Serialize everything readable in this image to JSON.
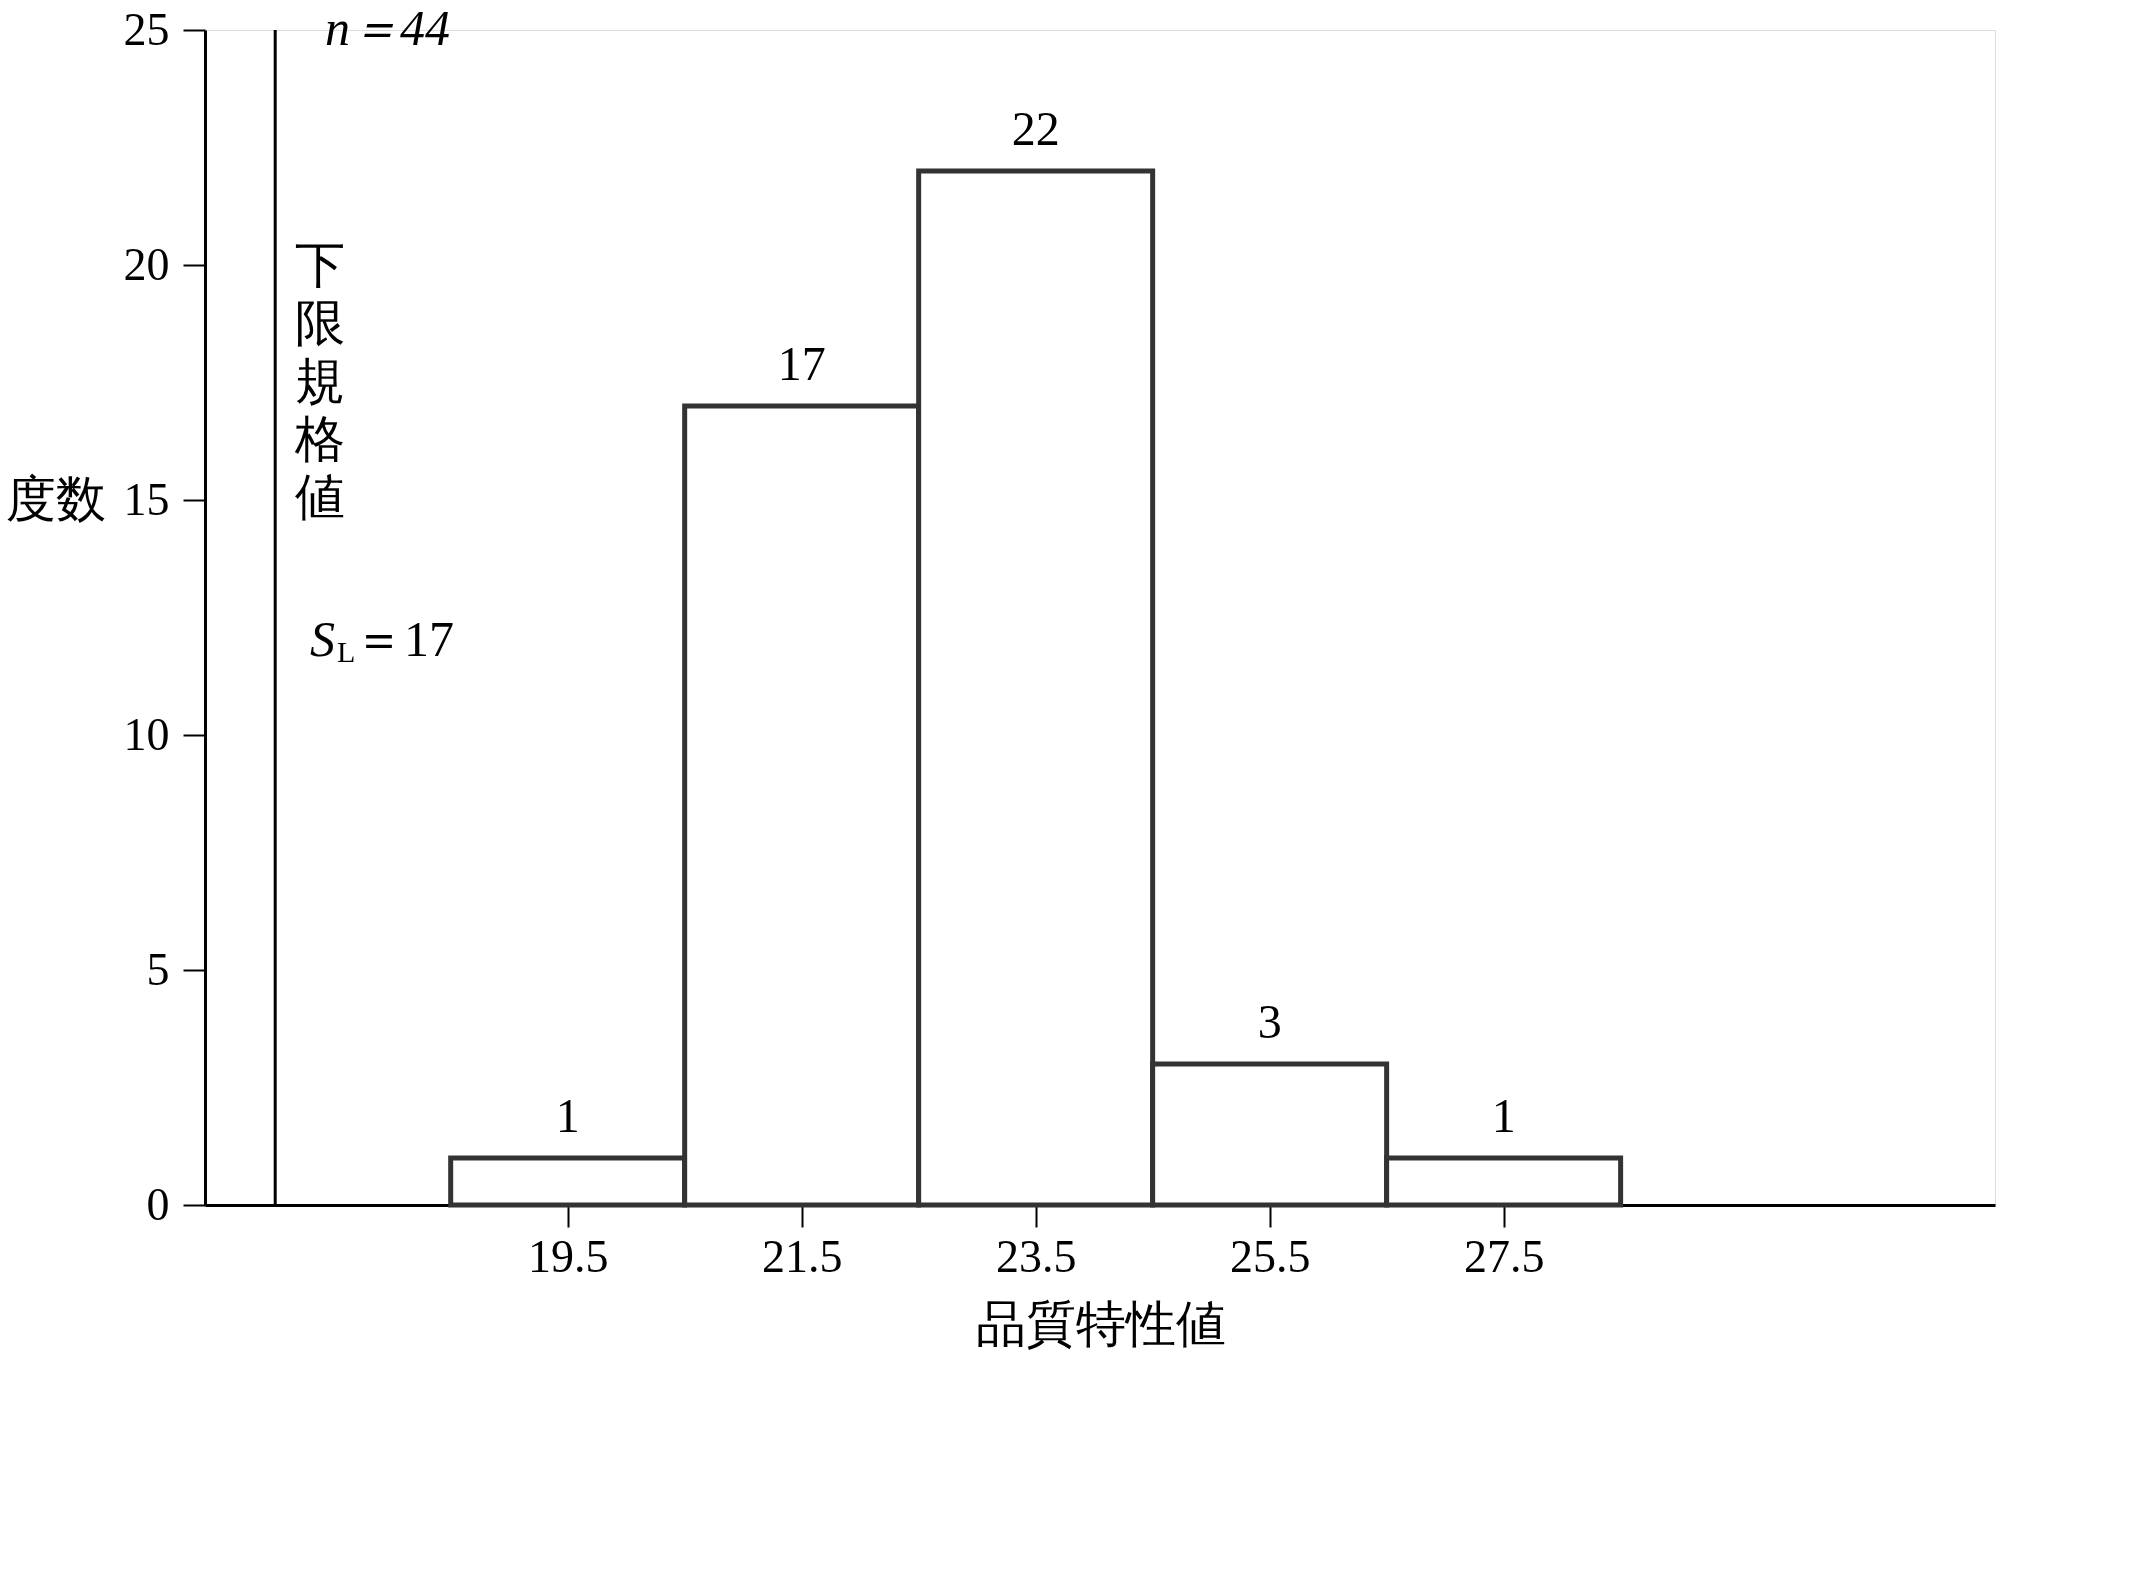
{
  "chart_data": {
    "type": "histogram",
    "bins": [
      18.5,
      20.5,
      22.5,
      24.5,
      26.5,
      28.5
    ],
    "values": [
      1,
      17,
      22,
      3,
      1
    ],
    "color": "#333333",
    "xlabel": "品質特性値",
    "ylabel": "度数",
    "xlim": [
      16.4,
      31.7
    ],
    "xticks": [
      19.5,
      21.5,
      23.5,
      25.5,
      27.5
    ],
    "ylim": [
      0,
      25
    ],
    "yticks": [
      0,
      5,
      10,
      15,
      20,
      25
    ],
    "ref_lines": [
      {
        "axis": "x",
        "value": 17,
        "label": "下限規格値"
      }
    ],
    "annotations": [
      "n＝44",
      "S$_{L}$＝17"
    ],
    "data_labels": true,
    "grid": false
  }
}
